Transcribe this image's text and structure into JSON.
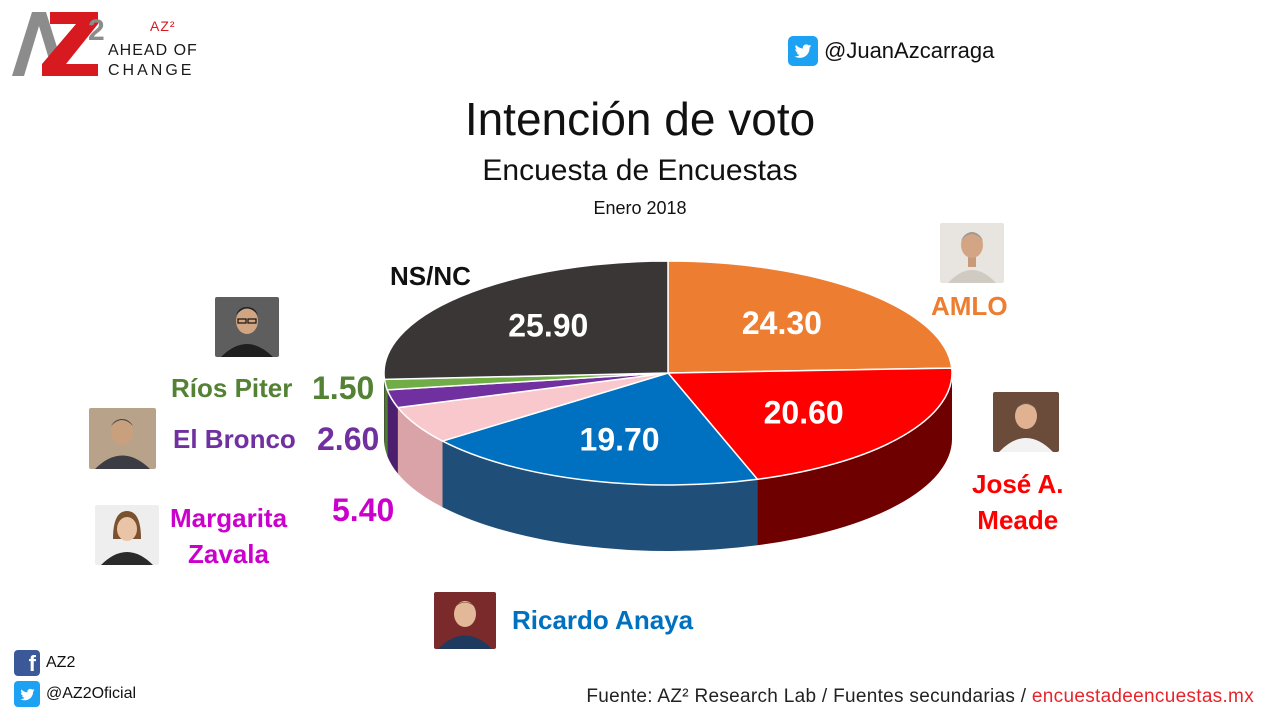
{
  "header": {
    "logo_super": "AZ²",
    "logo_line1": "AHEAD OF",
    "logo_line2": "CHANGE",
    "twitter_handle": "@JuanAzcarraga"
  },
  "chart_data": {
    "type": "pie",
    "title": "Intención de voto",
    "subtitle": "Encuesta de Encuestas",
    "date": "Enero 2018",
    "slices": [
      {
        "label": "AMLO",
        "value": 24.3,
        "value_text": "24.30",
        "color": "#ED7D31",
        "side_color": "#B85A1E"
      },
      {
        "label": "José A. Meade",
        "value": 20.6,
        "value_text": "20.60",
        "color": "#FF0000",
        "side_color": "#6E0000"
      },
      {
        "label": "Ricardo Anaya",
        "value": 19.7,
        "value_text": "19.70",
        "color": "#0070C0",
        "side_color": "#1F4E79"
      },
      {
        "label": "Margarita Zavala",
        "value": 5.4,
        "value_text": "5.40",
        "color": "#F8C8CC",
        "side_color": "#D9A3A7"
      },
      {
        "label": "El Bronco",
        "value": 2.6,
        "value_text": "2.60",
        "color": "#7030A0",
        "side_color": "#4B1F6E"
      },
      {
        "label": "Ríos Piter",
        "value": 1.5,
        "value_text": "1.50",
        "color": "#70AD47",
        "side_color": "#4E7A31"
      },
      {
        "label": "NS/NC",
        "value": 25.9,
        "value_text": "25.90",
        "color": "#3A3636",
        "side_color": "#242121"
      }
    ]
  },
  "labels": {
    "amlo": {
      "text": "AMLO",
      "color": "#ED7D31"
    },
    "meade_line1": "José A.",
    "meade_line2": "Meade",
    "meade_color": "#FF0000",
    "anaya": {
      "text": "Ricardo Anaya",
      "color": "#0070C0"
    },
    "zavala_line1": "Margarita",
    "zavala_line2": "Zavala",
    "zavala_color": "#CC00CC",
    "bronco": {
      "text": "El Bronco",
      "color": "#7030A0"
    },
    "rios": {
      "text": "Ríos Piter",
      "color": "#548235"
    },
    "nsnc": {
      "text": "NS/NC",
      "color": "#111111"
    }
  },
  "footer": {
    "facebook": "AZ2",
    "twitter": "@AZ2Oficial",
    "source_prefix": "Fuente: AZ² Research Lab / Fuentes secundarias / ",
    "source_site": "encuestadeencuestas.mx"
  }
}
